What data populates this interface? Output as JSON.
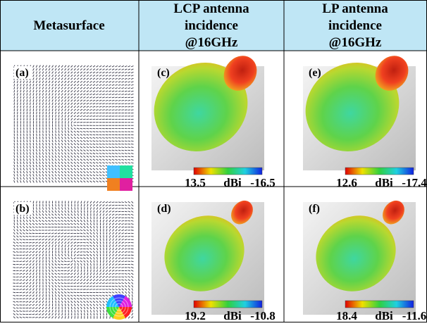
{
  "header": {
    "columns": [
      [
        "Metasurface"
      ],
      [
        "LCP antenna",
        "incidence",
        "@16GHz"
      ],
      [
        "LP antenna",
        "incidence",
        "@16GHz"
      ]
    ]
  },
  "rows": [
    {
      "metasurface_label": "(a)",
      "panels": [
        {
          "label": "(c)",
          "colorbar": {
            "max": "13.5",
            "unit": "dBi",
            "min": "-16.5"
          }
        },
        {
          "label": "(e)",
          "colorbar": {
            "max": "12.6",
            "unit": "dBi",
            "min": "-17.4"
          }
        }
      ]
    },
    {
      "metasurface_label": "(b)",
      "panels": [
        {
          "label": "(d)",
          "colorbar": {
            "max": "19.2",
            "unit": "dBi",
            "min": "-10.8"
          }
        },
        {
          "label": "(f)",
          "colorbar": {
            "max": "18.4",
            "unit": "dBi",
            "min": "-11.6"
          }
        }
      ]
    }
  ]
}
